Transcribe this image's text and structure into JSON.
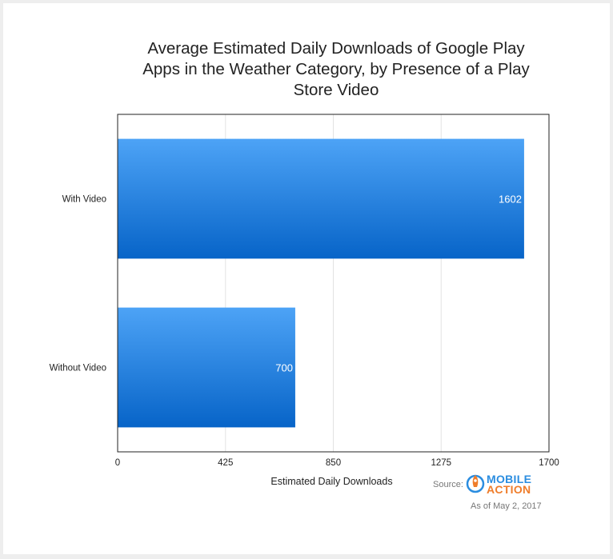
{
  "chart_data": {
    "type": "bar",
    "orientation": "horizontal",
    "title_lines": [
      "Average Estimated Daily Downloads of Google Play",
      "Apps in the Weather Category, by Presence of a Play",
      "Store Video"
    ],
    "categories": [
      "With Video",
      "Without Video"
    ],
    "values": [
      1602,
      700
    ],
    "value_labels": [
      "1602",
      "700"
    ],
    "xlabel": "Estimated Daily Downloads",
    "xlim": [
      0,
      1700
    ],
    "xticks": [
      "0",
      "425",
      "850",
      "1275",
      "1700"
    ],
    "xtick_values": [
      0,
      425,
      850,
      1275,
      1700
    ],
    "grid": true,
    "bar_colors": [
      "#4da3f6",
      "#0764c8"
    ]
  },
  "footer": {
    "source_label": "Source:",
    "logo_line1": "MOBILE",
    "logo_line2": "ACTION",
    "as_of": "As of May 2, 2017"
  },
  "icons": {
    "logo": "rocket-icon"
  }
}
